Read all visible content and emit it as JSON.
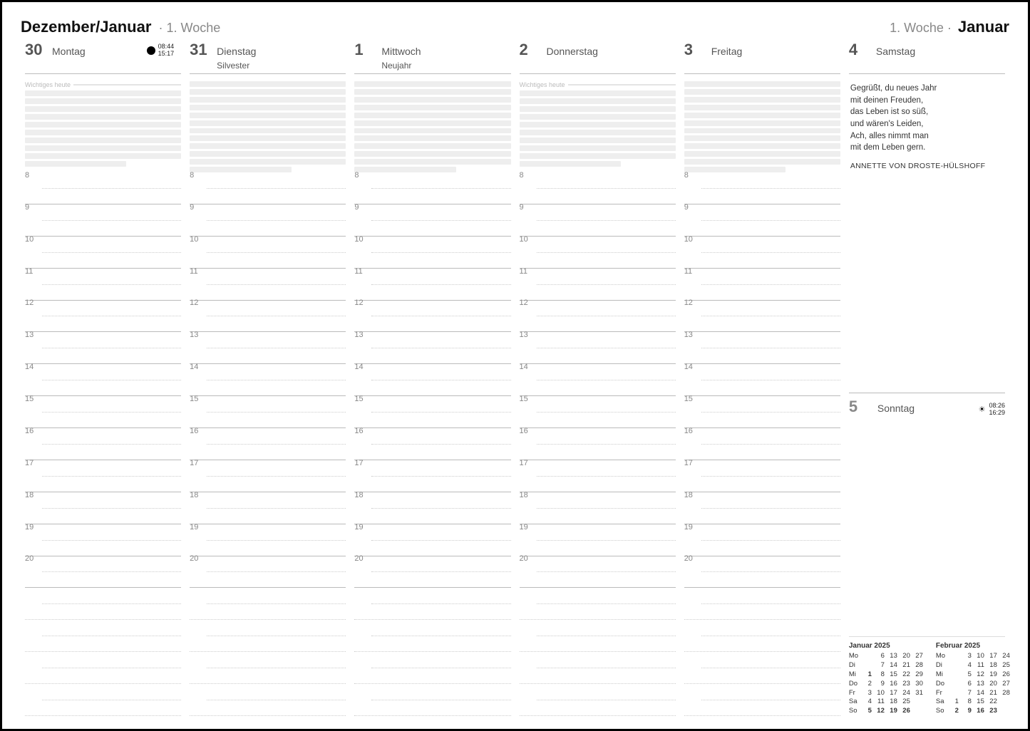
{
  "header": {
    "left_months": "Dezember/Januar",
    "left_week": "1. Woche",
    "right_week": "1. Woche",
    "right_month": "Januar"
  },
  "days": [
    {
      "num": "30",
      "name": "Montag",
      "sub": "",
      "notes_label": "Wichtiges heute",
      "moon": true,
      "times": [
        "08:44",
        "15:17"
      ]
    },
    {
      "num": "31",
      "name": "Dienstag",
      "sub": "Silvester",
      "notes_label": ""
    },
    {
      "num": "1",
      "name": "Mittwoch",
      "sub": "Neujahr",
      "notes_label": ""
    },
    {
      "num": "2",
      "name": "Donnerstag",
      "sub": "",
      "notes_label": "Wichtiges heute"
    },
    {
      "num": "3",
      "name": "Freitag",
      "sub": "",
      "notes_label": ""
    }
  ],
  "hours": [
    "8",
    "9",
    "10",
    "11",
    "12",
    "13",
    "14",
    "15",
    "16",
    "17",
    "18",
    "19",
    "20"
  ],
  "extra_blank_rows": 4,
  "saturday": {
    "num": "4",
    "name": "Samstag"
  },
  "sunday": {
    "num": "5",
    "name": "Sonntag",
    "sun_times": [
      "08:26",
      "16:29"
    ]
  },
  "quote": {
    "lines": [
      "Gegrüßt, du neues Jahr",
      "mit deinen Freuden,",
      "das Leben ist so süß,",
      "und wären's Leiden,",
      "Ach, alles nimmt man",
      "mit dem Leben gern."
    ],
    "author": "ANNETTE VON DROSTE-HÜLSHOFF"
  },
  "minicals": [
    {
      "title": "Januar 2025",
      "rows": [
        {
          "dow": "Mo",
          "d": [
            "",
            "6",
            "13",
            "20",
            "27"
          ]
        },
        {
          "dow": "Di",
          "d": [
            "",
            "7",
            "14",
            "21",
            "28"
          ]
        },
        {
          "dow": "Mi",
          "d": [
            "1",
            "8",
            "15",
            "22",
            "29"
          ],
          "bold": [
            0
          ]
        },
        {
          "dow": "Do",
          "d": [
            "2",
            "9",
            "16",
            "23",
            "30"
          ]
        },
        {
          "dow": "Fr",
          "d": [
            "3",
            "10",
            "17",
            "24",
            "31"
          ]
        },
        {
          "dow": "Sa",
          "d": [
            "4",
            "11",
            "18",
            "25",
            ""
          ]
        },
        {
          "dow": "So",
          "d": [
            "5",
            "12",
            "19",
            "26",
            ""
          ],
          "bold": [
            0,
            1,
            2,
            3
          ]
        }
      ]
    },
    {
      "title": "Februar 2025",
      "rows": [
        {
          "dow": "Mo",
          "d": [
            "",
            "3",
            "10",
            "17",
            "24"
          ]
        },
        {
          "dow": "Di",
          "d": [
            "",
            "4",
            "11",
            "18",
            "25"
          ]
        },
        {
          "dow": "Mi",
          "d": [
            "",
            "5",
            "12",
            "19",
            "26"
          ]
        },
        {
          "dow": "Do",
          "d": [
            "",
            "6",
            "13",
            "20",
            "27"
          ]
        },
        {
          "dow": "Fr",
          "d": [
            "",
            "7",
            "14",
            "21",
            "28"
          ]
        },
        {
          "dow": "Sa",
          "d": [
            "1",
            "8",
            "15",
            "22",
            ""
          ]
        },
        {
          "dow": "So",
          "d": [
            "2",
            "9",
            "16",
            "23",
            ""
          ],
          "bold": [
            0,
            1,
            2,
            3
          ]
        }
      ]
    }
  ],
  "colors": {
    "line": "#bbbbbb",
    "dotted": "#cccccc",
    "noteband": "#eeeeee",
    "text_muted": "#888888"
  }
}
